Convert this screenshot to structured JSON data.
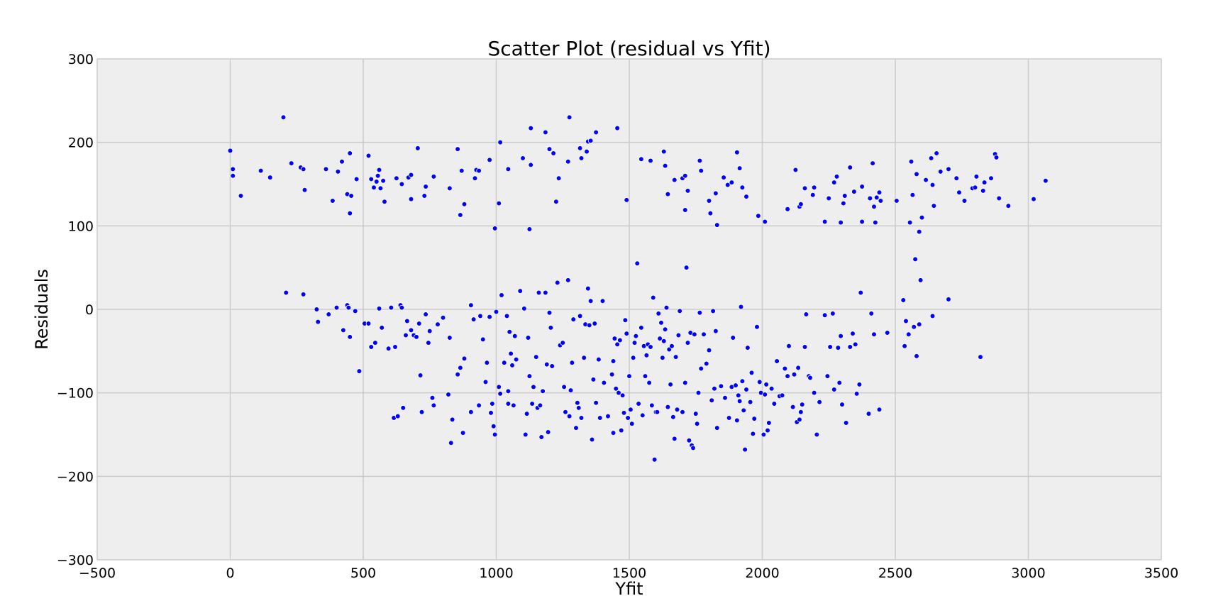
{
  "chart_data": {
    "type": "scatter",
    "title": "Scatter Plot (residual vs Yfit)",
    "xlabel": "Yfit",
    "ylabel": "Residuals",
    "xlim": [
      -500,
      3500
    ],
    "ylim": [
      -300,
      300
    ],
    "xticks": [
      -500,
      0,
      500,
      1000,
      1500,
      2000,
      2500,
      3000,
      3500
    ],
    "yticks": [
      -300,
      -200,
      -100,
      0,
      100,
      200,
      300
    ],
    "xtick_labels": [
      "−500",
      "0",
      "500",
      "1000",
      "1500",
      "2000",
      "2500",
      "3000",
      "3500"
    ],
    "ytick_labels": [
      "−300",
      "−200",
      "−100",
      "0",
      "100",
      "200",
      "300"
    ],
    "grid": true,
    "background": "#eeeeee",
    "point_color": "#0000ff",
    "points": [
      [
        0,
        190
      ],
      [
        10,
        168
      ],
      [
        10,
        160
      ],
      [
        40,
        136
      ],
      [
        115,
        166
      ],
      [
        150,
        158
      ],
      [
        200,
        230
      ],
      [
        230,
        175
      ],
      [
        265,
        170
      ],
      [
        275,
        168
      ],
      [
        280,
        143
      ],
      [
        360,
        168
      ],
      [
        385,
        130
      ],
      [
        405,
        165
      ],
      [
        420,
        177
      ],
      [
        440,
        138
      ],
      [
        450,
        187
      ],
      [
        450,
        115
      ],
      [
        455,
        136
      ],
      [
        475,
        156
      ],
      [
        520,
        184
      ],
      [
        530,
        156
      ],
      [
        540,
        146
      ],
      [
        550,
        153
      ],
      [
        555,
        160
      ],
      [
        560,
        167
      ],
      [
        565,
        145
      ],
      [
        575,
        154
      ],
      [
        580,
        129
      ],
      [
        625,
        157
      ],
      [
        645,
        150
      ],
      [
        670,
        158
      ],
      [
        680,
        161
      ],
      [
        680,
        132
      ],
      [
        705,
        193
      ],
      [
        730,
        136
      ],
      [
        735,
        147
      ],
      [
        765,
        159
      ],
      [
        825,
        145
      ],
      [
        855,
        192
      ],
      [
        865,
        113
      ],
      [
        870,
        166
      ],
      [
        880,
        126
      ],
      [
        920,
        157
      ],
      [
        925,
        167
      ],
      [
        935,
        166
      ],
      [
        975,
        179
      ],
      [
        995,
        97
      ],
      [
        1010,
        127
      ],
      [
        1015,
        200
      ],
      [
        1045,
        168
      ],
      [
        1100,
        181
      ],
      [
        1125,
        96
      ],
      [
        1130,
        173
      ],
      [
        1130,
        217
      ],
      [
        1185,
        212
      ],
      [
        1200,
        192
      ],
      [
        1215,
        187
      ],
      [
        1225,
        129
      ],
      [
        1235,
        157
      ],
      [
        1270,
        177
      ],
      [
        1275,
        230
      ],
      [
        1315,
        193
      ],
      [
        1320,
        181
      ],
      [
        1340,
        189
      ],
      [
        1345,
        201
      ],
      [
        1355,
        202
      ],
      [
        1375,
        212
      ],
      [
        1455,
        217
      ],
      [
        1490,
        131
      ],
      [
        1545,
        180
      ],
      [
        1580,
        178
      ],
      [
        1630,
        189
      ],
      [
        1635,
        172
      ],
      [
        1645,
        138
      ],
      [
        1670,
        155
      ],
      [
        1700,
        157
      ],
      [
        1710,
        160
      ],
      [
        1710,
        119
      ],
      [
        1720,
        142
      ],
      [
        1765,
        178
      ],
      [
        1770,
        166
      ],
      [
        1800,
        130
      ],
      [
        1805,
        115
      ],
      [
        1825,
        139
      ],
      [
        1830,
        101
      ],
      [
        1855,
        158
      ],
      [
        1870,
        149
      ],
      [
        1885,
        152
      ],
      [
        1905,
        188
      ],
      [
        1915,
        169
      ],
      [
        1925,
        146
      ],
      [
        1940,
        135
      ],
      [
        1985,
        112
      ],
      [
        2010,
        105
      ],
      [
        2095,
        120
      ],
      [
        2125,
        167
      ],
      [
        2140,
        123
      ],
      [
        2145,
        126
      ],
      [
        2160,
        145
      ],
      [
        2190,
        137
      ],
      [
        2195,
        146
      ],
      [
        2235,
        105
      ],
      [
        2250,
        133
      ],
      [
        2270,
        152
      ],
      [
        2280,
        159
      ],
      [
        2295,
        104
      ],
      [
        2305,
        127
      ],
      [
        2310,
        136
      ],
      [
        2330,
        170
      ],
      [
        2345,
        141
      ],
      [
        2375,
        105
      ],
      [
        2375,
        147
      ],
      [
        2405,
        133
      ],
      [
        2415,
        175
      ],
      [
        2420,
        123
      ],
      [
        2425,
        104
      ],
      [
        2430,
        134
      ],
      [
        2440,
        140
      ],
      [
        2445,
        130
      ],
      [
        2505,
        130
      ],
      [
        2555,
        104
      ],
      [
        2560,
        177
      ],
      [
        2565,
        137
      ],
      [
        2580,
        162
      ],
      [
        2590,
        93
      ],
      [
        2600,
        110
      ],
      [
        2615,
        155
      ],
      [
        2635,
        181
      ],
      [
        2640,
        149
      ],
      [
        2645,
        124
      ],
      [
        2655,
        187
      ],
      [
        2670,
        165
      ],
      [
        2700,
        168
      ],
      [
        2730,
        157
      ],
      [
        2740,
        140
      ],
      [
        2760,
        130
      ],
      [
        2790,
        145
      ],
      [
        2800,
        146
      ],
      [
        2805,
        159
      ],
      [
        2830,
        142
      ],
      [
        2835,
        152
      ],
      [
        2860,
        157
      ],
      [
        2875,
        186
      ],
      [
        2880,
        182
      ],
      [
        2890,
        133
      ],
      [
        2925,
        124
      ],
      [
        3020,
        132
      ],
      [
        3065,
        154
      ],
      [
        210,
        20
      ],
      [
        275,
        18
      ],
      [
        325,
        0
      ],
      [
        330,
        -15
      ],
      [
        370,
        -6
      ],
      [
        400,
        2
      ],
      [
        425,
        -25
      ],
      [
        440,
        5
      ],
      [
        445,
        2
      ],
      [
        450,
        -33
      ],
      [
        470,
        -2
      ],
      [
        485,
        -74
      ],
      [
        505,
        -17
      ],
      [
        520,
        -17
      ],
      [
        530,
        -45
      ],
      [
        545,
        -40
      ],
      [
        560,
        1
      ],
      [
        570,
        -22
      ],
      [
        595,
        -47
      ],
      [
        605,
        2
      ],
      [
        615,
        -130
      ],
      [
        620,
        -45
      ],
      [
        630,
        -128
      ],
      [
        640,
        5
      ],
      [
        645,
        2
      ],
      [
        650,
        -118
      ],
      [
        660,
        -31
      ],
      [
        665,
        -14
      ],
      [
        680,
        -25
      ],
      [
        690,
        -31
      ],
      [
        700,
        -33
      ],
      [
        710,
        -17
      ],
      [
        715,
        -79
      ],
      [
        720,
        -123
      ],
      [
        735,
        -6
      ],
      [
        745,
        -40
      ],
      [
        750,
        -26
      ],
      [
        760,
        -106
      ],
      [
        765,
        -115
      ],
      [
        780,
        -18
      ],
      [
        800,
        -10
      ],
      [
        820,
        -102
      ],
      [
        825,
        -34
      ],
      [
        835,
        -132
      ],
      [
        830,
        -160
      ],
      [
        855,
        -78
      ],
      [
        865,
        -70
      ],
      [
        875,
        -148
      ],
      [
        880,
        -59
      ],
      [
        905,
        -123
      ],
      [
        905,
        5
      ],
      [
        915,
        -12
      ],
      [
        935,
        -115
      ],
      [
        940,
        -8
      ],
      [
        950,
        -36
      ],
      [
        960,
        -87
      ],
      [
        965,
        -64
      ],
      [
        975,
        -9
      ],
      [
        980,
        -124
      ],
      [
        985,
        -113
      ],
      [
        990,
        -140
      ],
      [
        995,
        -150
      ],
      [
        1000,
        -3
      ],
      [
        1010,
        -93
      ],
      [
        1015,
        -101
      ],
      [
        1020,
        17
      ],
      [
        1030,
        -64
      ],
      [
        1040,
        -8
      ],
      [
        1045,
        -98
      ],
      [
        1045,
        -113
      ],
      [
        1050,
        -27
      ],
      [
        1055,
        -53
      ],
      [
        1060,
        -67
      ],
      [
        1065,
        -115
      ],
      [
        1070,
        -32
      ],
      [
        1075,
        -60
      ],
      [
        1090,
        22
      ],
      [
        1105,
        1
      ],
      [
        1110,
        -150
      ],
      [
        1115,
        -125
      ],
      [
        1120,
        -34
      ],
      [
        1125,
        -80
      ],
      [
        1135,
        -113
      ],
      [
        1140,
        -93
      ],
      [
        1150,
        -57
      ],
      [
        1155,
        -118
      ],
      [
        1160,
        20
      ],
      [
        1165,
        -115
      ],
      [
        1170,
        -153
      ],
      [
        1175,
        -98
      ],
      [
        1185,
        20
      ],
      [
        1190,
        -66
      ],
      [
        1195,
        -147
      ],
      [
        1200,
        -4
      ],
      [
        1205,
        -22
      ],
      [
        1210,
        -68
      ],
      [
        1230,
        32
      ],
      [
        1240,
        -43
      ],
      [
        1250,
        -40
      ],
      [
        1255,
        -93
      ],
      [
        1260,
        -123
      ],
      [
        1270,
        35
      ],
      [
        1275,
        -128
      ],
      [
        1280,
        -97
      ],
      [
        1285,
        -64
      ],
      [
        1290,
        -12
      ],
      [
        1300,
        -142
      ],
      [
        1305,
        -112
      ],
      [
        1310,
        -118
      ],
      [
        1315,
        -8
      ],
      [
        1320,
        -130
      ],
      [
        1330,
        -58
      ],
      [
        1335,
        -18
      ],
      [
        1345,
        25
      ],
      [
        1350,
        -19
      ],
      [
        1355,
        10
      ],
      [
        1360,
        -156
      ],
      [
        1365,
        -84
      ],
      [
        1370,
        -17
      ],
      [
        1375,
        -112
      ],
      [
        1385,
        -60
      ],
      [
        1390,
        -130
      ],
      [
        1400,
        10
      ],
      [
        1405,
        -88
      ],
      [
        1420,
        -128
      ],
      [
        1435,
        -78
      ],
      [
        1440,
        -148
      ],
      [
        1440,
        -62
      ],
      [
        1445,
        -35
      ],
      [
        1450,
        -95
      ],
      [
        1455,
        -42
      ],
      [
        1460,
        -100
      ],
      [
        1465,
        -37
      ],
      [
        1470,
        -145
      ],
      [
        1475,
        -103
      ],
      [
        1480,
        -124
      ],
      [
        1485,
        -13
      ],
      [
        1490,
        -29
      ],
      [
        1495,
        -130
      ],
      [
        1500,
        -80
      ],
      [
        1505,
        -120
      ],
      [
        1510,
        -137
      ],
      [
        1515,
        -58
      ],
      [
        1520,
        -40
      ],
      [
        1525,
        -32
      ],
      [
        1530,
        55
      ],
      [
        1535,
        -113
      ],
      [
        1545,
        -22
      ],
      [
        1550,
        -127
      ],
      [
        1555,
        -44
      ],
      [
        1560,
        -80
      ],
      [
        1565,
        -55
      ],
      [
        1570,
        -42
      ],
      [
        1575,
        -88
      ],
      [
        1580,
        -45
      ],
      [
        1585,
        -115
      ],
      [
        1590,
        14
      ],
      [
        1595,
        -180
      ],
      [
        1600,
        -123
      ],
      [
        1605,
        -123
      ],
      [
        1610,
        -5
      ],
      [
        1615,
        -35
      ],
      [
        1620,
        -16
      ],
      [
        1625,
        -58
      ],
      [
        1630,
        -38
      ],
      [
        1635,
        -24
      ],
      [
        1640,
        2
      ],
      [
        1645,
        -117
      ],
      [
        1650,
        -48
      ],
      [
        1655,
        -90
      ],
      [
        1660,
        -44
      ],
      [
        1665,
        -129
      ],
      [
        1670,
        -155
      ],
      [
        1675,
        -57
      ],
      [
        1680,
        -120
      ],
      [
        1685,
        -31
      ],
      [
        1690,
        -2
      ],
      [
        1700,
        -123
      ],
      [
        1710,
        -88
      ],
      [
        1715,
        50
      ],
      [
        1720,
        -40
      ],
      [
        1725,
        -157
      ],
      [
        1730,
        -28
      ],
      [
        1735,
        -163
      ],
      [
        1740,
        -166
      ],
      [
        1745,
        -30
      ],
      [
        1750,
        -125
      ],
      [
        1755,
        -137
      ],
      [
        1760,
        -100
      ],
      [
        1765,
        -4
      ],
      [
        1770,
        -71
      ],
      [
        1780,
        -30
      ],
      [
        1790,
        -65
      ],
      [
        1800,
        -49
      ],
      [
        1810,
        -109
      ],
      [
        1815,
        -2
      ],
      [
        1820,
        -95
      ],
      [
        1825,
        -26
      ],
      [
        1830,
        -142
      ],
      [
        1845,
        -92
      ],
      [
        1860,
        -106
      ],
      [
        1875,
        -130
      ],
      [
        1885,
        -93
      ],
      [
        1890,
        -34
      ],
      [
        1900,
        -91
      ],
      [
        1905,
        -133
      ],
      [
        1910,
        -103
      ],
      [
        1915,
        -110
      ],
      [
        1920,
        3
      ],
      [
        1925,
        -86
      ],
      [
        1930,
        -121
      ],
      [
        1935,
        -168
      ],
      [
        1940,
        -96
      ],
      [
        1945,
        -46
      ],
      [
        1955,
        -111
      ],
      [
        1960,
        -76
      ],
      [
        1965,
        -149
      ],
      [
        1970,
        -131
      ],
      [
        1980,
        -21
      ],
      [
        1990,
        -87
      ],
      [
        1995,
        -100
      ],
      [
        2005,
        -150
      ],
      [
        2010,
        -102
      ],
      [
        2015,
        -90
      ],
      [
        2020,
        -145
      ],
      [
        2025,
        -136
      ],
      [
        2035,
        -95
      ],
      [
        2045,
        -113
      ],
      [
        2055,
        -62
      ],
      [
        2065,
        -104
      ],
      [
        2075,
        -103
      ],
      [
        2085,
        -71
      ],
      [
        2095,
        -80
      ],
      [
        2100,
        -44
      ],
      [
        2115,
        -117
      ],
      [
        2120,
        -78
      ],
      [
        2130,
        -135
      ],
      [
        2135,
        -70
      ],
      [
        2140,
        -132
      ],
      [
        2145,
        -123
      ],
      [
        2150,
        -114
      ],
      [
        2160,
        -45
      ],
      [
        2165,
        -6
      ],
      [
        2175,
        -80
      ],
      [
        2180,
        -82
      ],
      [
        2195,
        -100
      ],
      [
        2205,
        -150
      ],
      [
        2215,
        -111
      ],
      [
        2235,
        -7
      ],
      [
        2245,
        -80
      ],
      [
        2255,
        -45
      ],
      [
        2265,
        -5
      ],
      [
        2270,
        -96
      ],
      [
        2285,
        -46
      ],
      [
        2290,
        -88
      ],
      [
        2295,
        -32
      ],
      [
        2300,
        -114
      ],
      [
        2315,
        -136
      ],
      [
        2330,
        -45
      ],
      [
        2340,
        -29
      ],
      [
        2350,
        -42
      ],
      [
        2355,
        -101
      ],
      [
        2365,
        -90
      ],
      [
        2370,
        20
      ],
      [
        2400,
        -125
      ],
      [
        2410,
        -5
      ],
      [
        2420,
        -30
      ],
      [
        2440,
        -120
      ],
      [
        2470,
        -28
      ],
      [
        2530,
        11
      ],
      [
        2535,
        -44
      ],
      [
        2540,
        -14
      ],
      [
        2550,
        -30
      ],
      [
        2570,
        -21
      ],
      [
        2575,
        60
      ],
      [
        2580,
        -56
      ],
      [
        2590,
        -18
      ],
      [
        2595,
        35
      ],
      [
        2640,
        -8
      ],
      [
        2700,
        12
      ],
      [
        2820,
        -57
      ]
    ]
  }
}
